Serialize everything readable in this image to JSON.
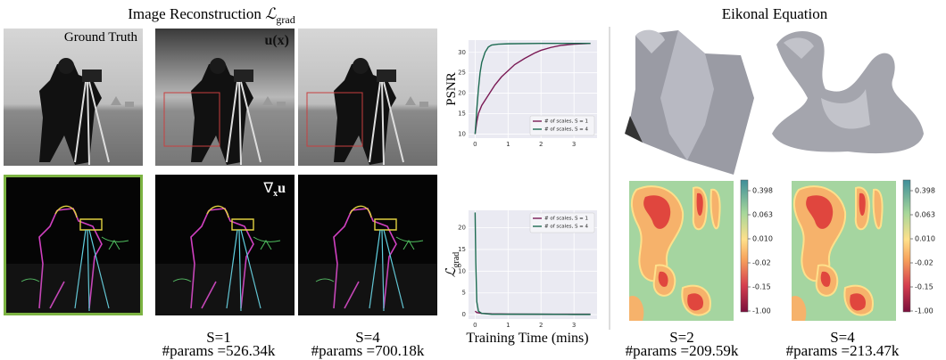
{
  "header": {
    "left_title": "Image Reconstruction",
    "left_symbol": "ℒ",
    "left_subscript": "grad",
    "right_title": "Eikonal Equation"
  },
  "image_labels": {
    "ground_truth": "Ground Truth",
    "solution": "u(x)",
    "gradient_symbol": "∇",
    "gradient_subscript": "x",
    "gradient_body": "u"
  },
  "captions": [
    {
      "scale": "S=1",
      "params": "#params =526.34k"
    },
    {
      "scale": "S=4",
      "params": "#params =700.18k"
    },
    {
      "scale": "S=2",
      "params": "#params =209.59k"
    },
    {
      "scale": "S=4",
      "params": "#params =213.47k"
    }
  ],
  "colorbar_ticks": [
    "0.398",
    "0.063",
    "0.010",
    "-0.02",
    "-0.15",
    "-1.00"
  ],
  "chart_data": [
    {
      "type": "line",
      "ylabel": "PSNR",
      "xlim": [
        -0.2,
        3.7
      ],
      "ylim": [
        9,
        33
      ],
      "xticks": [
        0,
        1,
        2,
        3
      ],
      "yticks": [
        10,
        15,
        20,
        25,
        30
      ],
      "grid": true,
      "legend": "lower right",
      "series": [
        {
          "name": "# of scales, S = 1",
          "color": "#7a1a55",
          "x": [
            0,
            0.05,
            0.1,
            0.2,
            0.4,
            0.6,
            0.8,
            1.0,
            1.2,
            1.5,
            1.8,
            2.0,
            2.3,
            2.6,
            3.0,
            3.5
          ],
          "values": [
            10,
            13,
            15,
            17,
            19.5,
            22,
            24,
            25.5,
            27,
            28.5,
            29.8,
            30.5,
            31.2,
            31.7,
            32,
            32.2
          ]
        },
        {
          "name": "# of scales, S = 4",
          "color": "#1e6b52",
          "x": [
            0,
            0.05,
            0.1,
            0.15,
            0.2,
            0.3,
            0.4,
            0.5,
            0.7,
            1,
            2,
            3,
            3.5
          ],
          "values": [
            10,
            16,
            21,
            25,
            27.5,
            30,
            31.3,
            31.8,
            32,
            32.1,
            32.2,
            32.2,
            32.2
          ]
        }
      ]
    },
    {
      "type": "line",
      "ylabel_symbol": "ℒ",
      "ylabel_subscript": "grad",
      "xlabel": "Training Time (mins)",
      "xlim": [
        -0.2,
        3.7
      ],
      "ylim": [
        -1,
        24
      ],
      "xticks": [
        0,
        1,
        2,
        3
      ],
      "yticks": [
        0,
        5,
        10,
        15,
        20
      ],
      "grid": true,
      "legend": "upper right",
      "series": [
        {
          "name": "# of scales, S = 1",
          "color": "#7a1a55",
          "x": [
            0,
            0.05,
            0.2,
            0.5,
            1,
            2,
            3,
            3.5
          ],
          "values": [
            0.8,
            0.5,
            0.3,
            0.2,
            0.15,
            0.1,
            0.1,
            0.1
          ]
        },
        {
          "name": "# of scales, S = 4",
          "color": "#1e6b52",
          "x": [
            0,
            0.02,
            0.05,
            0.1,
            0.2,
            0.5,
            1,
            2,
            3,
            3.5
          ],
          "values": [
            23.5,
            12,
            3,
            0.8,
            0.3,
            0.1,
            0.1,
            0.1,
            0.05,
            0.05
          ]
        }
      ]
    }
  ]
}
